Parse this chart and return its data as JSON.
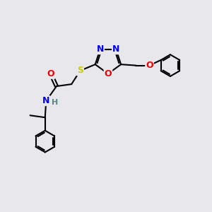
{
  "bg_color": "#e8e8ec",
  "bond_color": "#000000",
  "atom_colors": {
    "N": "#0000ee",
    "O": "#ee0000",
    "S": "#cccc00",
    "H": "#558888",
    "C": "#000000"
  },
  "bond_width": 1.5,
  "font_size_atoms": 9,
  "font_size_H": 8
}
